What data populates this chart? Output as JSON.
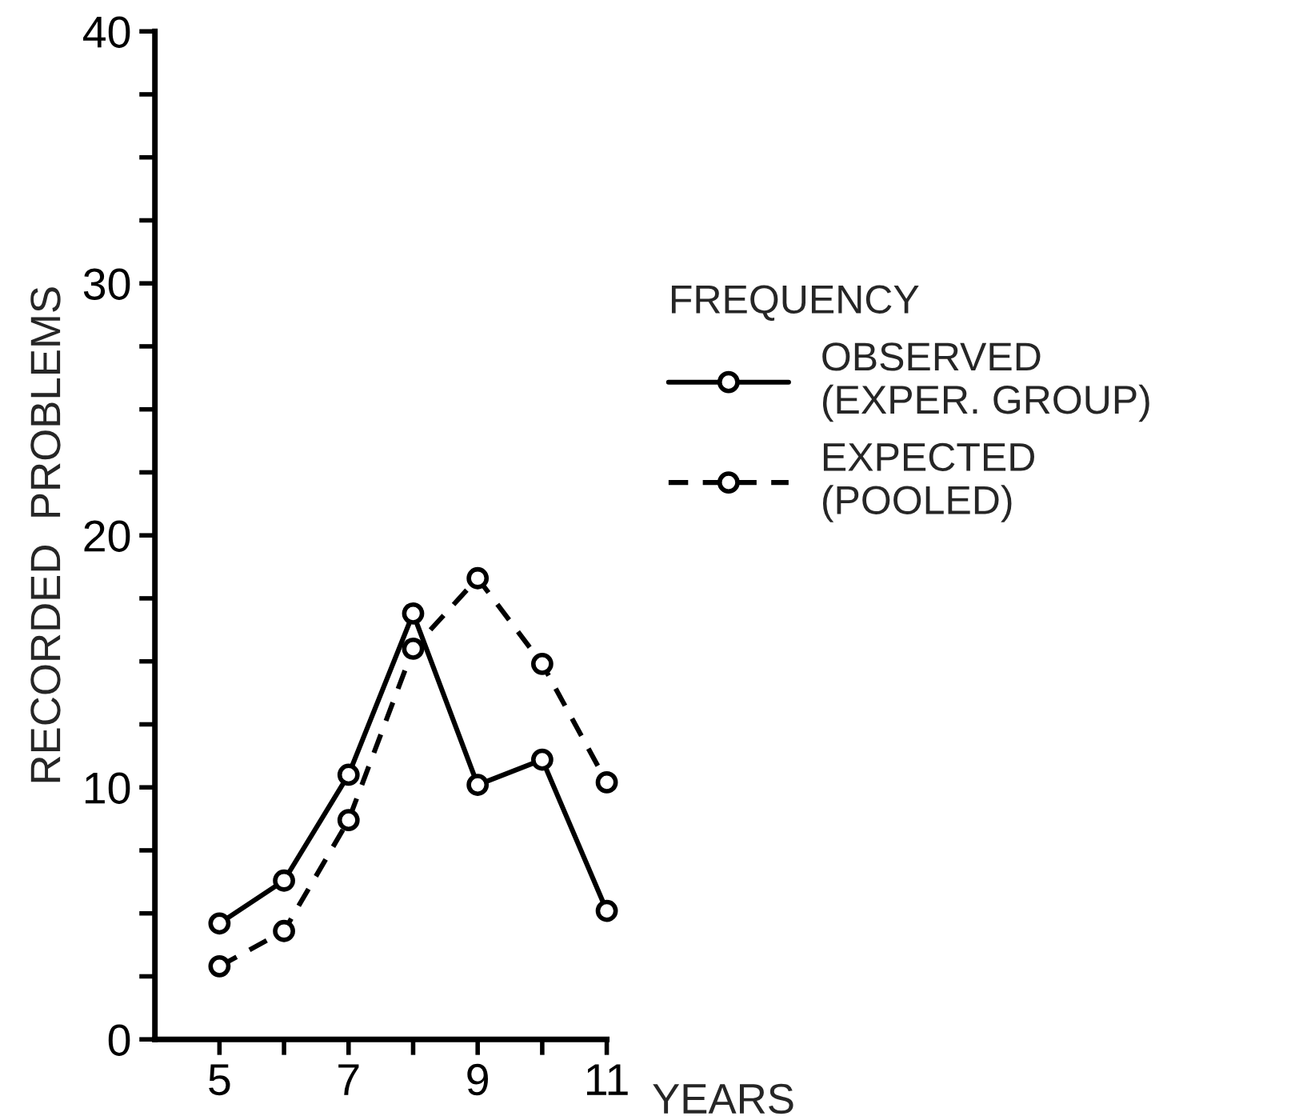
{
  "chart_data": {
    "type": "line",
    "xlabel": "YEARS",
    "ylabel": "RECORDED  PROBLEMS",
    "legend_title": "FREQUENCY",
    "x": [
      5,
      6,
      7,
      8,
      9,
      10,
      11
    ],
    "series": [
      {
        "name": "OBSERVED\n(EXPER. GROUP)",
        "color": "#000000",
        "line_style": "solid",
        "values": [
          4.6,
          6.3,
          10.5,
          16.9,
          10.1,
          11.1,
          5.1
        ]
      },
      {
        "name": "EXPECTED\n(POOLED)",
        "color": "#000000",
        "line_style": "dashed",
        "values": [
          2.9,
          4.3,
          8.7,
          15.5,
          18.3,
          14.9,
          10.2
        ]
      }
    ],
    "xlim": [
      4,
      11
    ],
    "xticks": [
      5,
      {
        "value": 6,
        "label": null
      },
      7,
      {
        "value": 8,
        "label": null
      },
      9,
      {
        "value": 10,
        "label": null
      },
      11
    ],
    "ylim": [
      0,
      40
    ],
    "yticks": [
      0,
      {
        "value": 2.5,
        "label": null
      },
      {
        "value": 5,
        "label": null
      },
      {
        "value": 7.5,
        "label": null
      },
      10,
      {
        "value": 12.5,
        "label": null
      },
      {
        "value": 15,
        "label": null
      },
      {
        "value": 17.5,
        "label": null
      },
      20,
      {
        "value": 22.5,
        "label": null
      },
      {
        "value": 25,
        "label": null
      },
      {
        "value": 27.5,
        "label": null
      },
      30,
      {
        "value": 32.5,
        "label": null
      },
      {
        "value": 35,
        "label": null
      },
      {
        "value": 37.5,
        "label": null
      },
      40
    ],
    "marker": "circle",
    "grid": false,
    "legend": "right"
  }
}
